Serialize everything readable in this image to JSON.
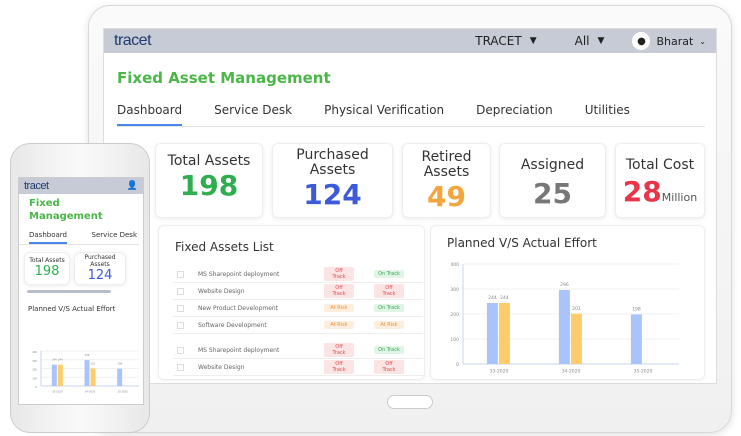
{
  "app": {
    "logo": "tracet",
    "org_select": "TRACET",
    "scope_select": "All",
    "user": "Bharat",
    "title": "Fixed Asset Management"
  },
  "tabs": [
    "Dashboard",
    "Service Desk",
    "Physical Verification",
    "Depreciation",
    "Utilities"
  ],
  "cards": [
    {
      "label": "Total Assets",
      "value": "198",
      "color": "#2fae4f"
    },
    {
      "label": "Purchased Assets",
      "value": "124",
      "color": "#3d5bd9"
    },
    {
      "label": "Retired Assets",
      "value": "49",
      "color": "#f4a53c"
    },
    {
      "label": "Assigned",
      "value": "25",
      "color": "#777777"
    },
    {
      "label": "Total Cost",
      "value": "28",
      "unit": "Million",
      "color": "#e8354a"
    }
  ],
  "list": {
    "title": "Fixed Assets List",
    "rows": [
      {
        "name": "MS Sharepoint deployment",
        "s1": "Off Track",
        "s2": "On Track"
      },
      {
        "name": "Website Design",
        "s1": "Off Track",
        "s2": "Off Track"
      },
      {
        "name": "New Product Development",
        "s1": "At Risk",
        "s2": "On Track"
      },
      {
        "name": "Software Development",
        "s1": "At Risk",
        "s2": "At Risk"
      },
      {
        "name": "MS Sharepoint deployment",
        "s1": "Off Track",
        "s2": "On Track"
      },
      {
        "name": "Website Design",
        "s1": "Off Track",
        "s2": "Off Track"
      }
    ]
  },
  "chart_data": {
    "type": "bar",
    "title": "Planned V/S Actual Effort",
    "categories": [
      "33-2020",
      "34-2020",
      "35-2020"
    ],
    "series": [
      {
        "values": [
          244,
          296,
          198
        ],
        "color": "#a9c4fb"
      },
      {
        "values": [
          244,
          201,
          null
        ],
        "color": "#ffcb6b"
      }
    ],
    "ylim": [
      0,
      400
    ],
    "yticks": [
      0,
      100,
      200,
      300,
      400
    ],
    "grid": true
  },
  "mobile": {
    "title": "Fixed Management",
    "tabs": [
      "Dashboard",
      "Service Desk"
    ],
    "cards": [
      {
        "label": "Total Assets",
        "value": "198"
      },
      {
        "label": "Purchased Assets",
        "value": "124"
      }
    ],
    "chart_title": "Planned V/S Actual Effort"
  }
}
